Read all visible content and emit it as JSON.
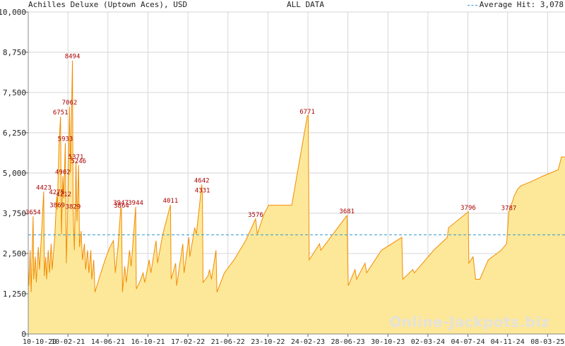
{
  "chart_data": {
    "type": "area",
    "title": "Achilles Deluxe (Uptown Aces), USD",
    "subtitle": "ALL DATA",
    "legend": {
      "label": "Average Hit: 3,078",
      "placement": "top-right",
      "style": "dashed"
    },
    "average_hit": 3078,
    "ylim": [
      0,
      10000
    ],
    "y_ticks": [
      "0",
      "1,250",
      "2,500",
      "3,750",
      "5,000",
      "6,250",
      "7,500",
      "8,750",
      "10,000"
    ],
    "y_tick_values": [
      0,
      1250,
      2500,
      3750,
      5000,
      6250,
      7500,
      8750,
      10000
    ],
    "x_range": [
      "2020-10-10",
      "2025-05-01"
    ],
    "x_ticks": [
      "10-10-20",
      "10-02-21",
      "14-06-21",
      "16-10-21",
      "17-02-22",
      "21-06-22",
      "23-10-22",
      "24-02-23",
      "28-06-23",
      "30-10-23",
      "02-03-24",
      "04-07-24",
      "04-11-24",
      "08-03-25"
    ],
    "x_tick_dates": [
      "2020-10-10",
      "2021-02-10",
      "2021-06-14",
      "2021-10-16",
      "2022-02-17",
      "2022-06-21",
      "2022-10-23",
      "2023-02-24",
      "2023-06-28",
      "2023-10-30",
      "2024-03-02",
      "2024-07-04",
      "2024-11-04",
      "2025-03-08"
    ],
    "grid": true,
    "colors": {
      "fill": "#fde89a",
      "line": "#f28c00",
      "label": "#aa0000",
      "average": "#3399cc",
      "grid": "#d6d6d6"
    },
    "series": [
      {
        "values": [
          [
            "2020-10-10",
            2000
          ],
          [
            "2020-10-12",
            1500
          ],
          [
            "2020-10-16",
            2600
          ],
          [
            "2020-10-19",
            1300
          ],
          [
            "2020-10-25",
            3654
          ],
          [
            "2020-10-27",
            1700
          ],
          [
            "2020-11-01",
            2400
          ],
          [
            "2020-11-04",
            1600
          ],
          [
            "2020-11-10",
            2700
          ],
          [
            "2020-11-14",
            2000
          ],
          [
            "2020-11-20",
            3100
          ],
          [
            "2020-11-27",
            4423
          ],
          [
            "2020-11-29",
            1800
          ],
          [
            "2020-12-03",
            2400
          ],
          [
            "2020-12-06",
            1700
          ],
          [
            "2020-12-11",
            2600
          ],
          [
            "2020-12-15",
            1900
          ],
          [
            "2020-12-20",
            2800
          ],
          [
            "2020-12-23",
            2000
          ],
          [
            "2020-12-31",
            3000
          ],
          [
            "2021-01-06",
            4275
          ],
          [
            "2021-01-08",
            3869
          ],
          [
            "2021-01-13",
            5800
          ],
          [
            "2021-01-18",
            6751
          ],
          [
            "2021-01-21",
            3100
          ],
          [
            "2021-01-25",
            4902
          ],
          [
            "2021-01-28",
            4212
          ],
          [
            "2021-02-02",
            5933
          ],
          [
            "2021-02-05",
            2200
          ],
          [
            "2021-02-09",
            3700
          ],
          [
            "2021-02-15",
            7062
          ],
          [
            "2021-02-18",
            5000
          ],
          [
            "2021-02-24",
            8494
          ],
          [
            "2021-02-26",
            3829
          ],
          [
            "2021-03-02",
            2600
          ],
          [
            "2021-03-07",
            5371
          ],
          [
            "2021-03-10",
            3500
          ],
          [
            "2021-03-15",
            5246
          ],
          [
            "2021-03-18",
            2700
          ],
          [
            "2021-03-23",
            3200
          ],
          [
            "2021-03-27",
            2300
          ],
          [
            "2021-04-02",
            2800
          ],
          [
            "2021-04-06",
            2000
          ],
          [
            "2021-04-12",
            2600
          ],
          [
            "2021-04-16",
            1900
          ],
          [
            "2021-04-22",
            2600
          ],
          [
            "2021-04-25",
            1700
          ],
          [
            "2021-05-01",
            2300
          ],
          [
            "2021-05-05",
            1300
          ],
          [
            "2021-05-20",
            1800
          ],
          [
            "2021-06-05",
            2300
          ],
          [
            "2021-06-20",
            2700
          ],
          [
            "2021-07-01",
            2900
          ],
          [
            "2021-07-07",
            1900
          ],
          [
            "2021-07-15",
            2700
          ],
          [
            "2021-07-24",
            3947
          ],
          [
            "2021-07-26",
            3864
          ],
          [
            "2021-07-29",
            1300
          ],
          [
            "2021-08-05",
            2100
          ],
          [
            "2021-08-10",
            1600
          ],
          [
            "2021-08-20",
            2600
          ],
          [
            "2021-08-25",
            2100
          ],
          [
            "2021-09-08",
            3944
          ],
          [
            "2021-09-10",
            1400
          ],
          [
            "2021-09-20",
            1600
          ],
          [
            "2021-10-01",
            1900
          ],
          [
            "2021-10-06",
            1600
          ],
          [
            "2021-10-20",
            2300
          ],
          [
            "2021-10-25",
            1900
          ],
          [
            "2021-11-10",
            2900
          ],
          [
            "2021-11-15",
            2200
          ],
          [
            "2021-12-01",
            3100
          ],
          [
            "2021-12-25",
            4011
          ],
          [
            "2021-12-27",
            1700
          ],
          [
            "2022-01-10",
            2200
          ],
          [
            "2022-01-13",
            1500
          ],
          [
            "2022-02-01",
            2800
          ],
          [
            "2022-02-05",
            1900
          ],
          [
            "2022-02-20",
            3000
          ],
          [
            "2022-02-23",
            2400
          ],
          [
            "2022-03-10",
            3300
          ],
          [
            "2022-03-15",
            3100
          ],
          [
            "2022-04-01",
            4642
          ],
          [
            "2022-04-03",
            4331
          ],
          [
            "2022-04-05",
            1600
          ],
          [
            "2022-04-20",
            1800
          ],
          [
            "2022-04-25",
            2000
          ],
          [
            "2022-05-01",
            1700
          ],
          [
            "2022-05-15",
            2600
          ],
          [
            "2022-05-18",
            1300
          ],
          [
            "2022-06-10",
            1900
          ],
          [
            "2022-07-10",
            2300
          ],
          [
            "2022-08-15",
            2900
          ],
          [
            "2022-09-15",
            3576
          ],
          [
            "2022-09-20",
            3100
          ],
          [
            "2022-10-10",
            3700
          ],
          [
            "2022-10-25",
            4000
          ],
          [
            "2023-01-05",
            4000
          ],
          [
            "2023-02-22",
            6771
          ],
          [
            "2023-02-25",
            6800
          ],
          [
            "2023-02-28",
            2300
          ],
          [
            "2023-04-01",
            2800
          ],
          [
            "2023-04-05",
            2600
          ],
          [
            "2023-05-05",
            3000
          ],
          [
            "2023-06-25",
            3681
          ],
          [
            "2023-06-29",
            1500
          ],
          [
            "2023-07-20",
            2000
          ],
          [
            "2023-07-25",
            1700
          ],
          [
            "2023-08-20",
            2200
          ],
          [
            "2023-08-25",
            1900
          ],
          [
            "2023-10-10",
            2600
          ],
          [
            "2023-12-12",
            3000
          ],
          [
            "2023-12-15",
            1700
          ],
          [
            "2024-01-15",
            2000
          ],
          [
            "2024-01-20",
            1900
          ],
          [
            "2024-03-20",
            2600
          ],
          [
            "2024-05-01",
            3000
          ],
          [
            "2024-05-05",
            3300
          ],
          [
            "2024-07-05",
            3796
          ],
          [
            "2024-07-07",
            2200
          ],
          [
            "2024-07-20",
            2400
          ],
          [
            "2024-07-28",
            1700
          ],
          [
            "2024-08-10",
            1700
          ],
          [
            "2024-09-05",
            2300
          ],
          [
            "2024-10-15",
            2600
          ],
          [
            "2024-11-01",
            2800
          ],
          [
            "2024-11-08",
            3787
          ],
          [
            "2024-11-25",
            4300
          ],
          [
            "2024-12-05",
            4500
          ],
          [
            "2024-12-15",
            4600
          ],
          [
            "2025-01-20",
            4750
          ],
          [
            "2025-02-20",
            4900
          ],
          [
            "2025-04-10",
            5100
          ],
          [
            "2025-04-20",
            5500
          ],
          [
            "2025-05-01",
            5500
          ]
        ]
      }
    ],
    "data_labels": [
      {
        "date": "2020-10-25",
        "value": 3654,
        "text": "3654"
      },
      {
        "date": "2020-11-27",
        "value": 4423,
        "text": "4423"
      },
      {
        "date": "2021-01-06",
        "value": 4275,
        "text": "4275"
      },
      {
        "date": "2021-01-08",
        "value": 3869,
        "text": "3869"
      },
      {
        "date": "2021-01-18",
        "value": 6751,
        "text": "6751"
      },
      {
        "date": "2021-01-25",
        "value": 4902,
        "text": "4902"
      },
      {
        "date": "2021-01-28",
        "value": 4212,
        "text": "4212"
      },
      {
        "date": "2021-02-02",
        "value": 5933,
        "text": "5933"
      },
      {
        "date": "2021-02-15",
        "value": 7062,
        "text": "7062"
      },
      {
        "date": "2021-02-24",
        "value": 8494,
        "text": "8494"
      },
      {
        "date": "2021-02-26",
        "value": 3829,
        "text": "3829"
      },
      {
        "date": "2021-03-07",
        "value": 5371,
        "text": "5371"
      },
      {
        "date": "2021-03-15",
        "value": 5246,
        "text": "5246"
      },
      {
        "date": "2021-07-24",
        "value": 3947,
        "text": "3947"
      },
      {
        "date": "2021-07-26",
        "value": 3864,
        "text": "3864"
      },
      {
        "date": "2021-09-08",
        "value": 3944,
        "text": "3944"
      },
      {
        "date": "2021-12-25",
        "value": 4011,
        "text": "4011"
      },
      {
        "date": "2022-04-01",
        "value": 4642,
        "text": "4642"
      },
      {
        "date": "2022-04-03",
        "value": 4331,
        "text": "4331"
      },
      {
        "date": "2022-09-15",
        "value": 3576,
        "text": "3576"
      },
      {
        "date": "2023-02-22",
        "value": 6771,
        "text": "6771"
      },
      {
        "date": "2023-06-25",
        "value": 3681,
        "text": "3681"
      },
      {
        "date": "2024-07-05",
        "value": 3796,
        "text": "3796"
      },
      {
        "date": "2024-11-08",
        "value": 3787,
        "text": "3787"
      }
    ]
  },
  "watermark": "Online-Jackpots.biz"
}
